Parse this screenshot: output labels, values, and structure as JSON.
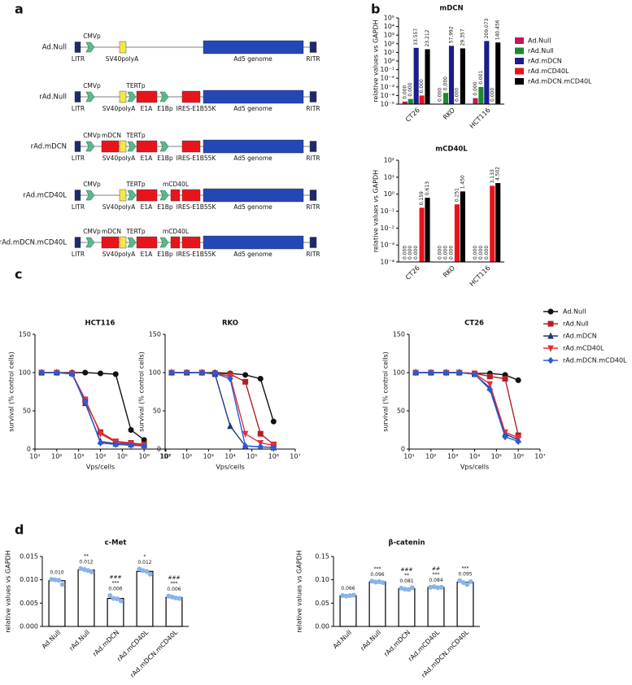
{
  "panel_labels": [
    "a",
    "b",
    "c",
    "d"
  ],
  "diagram": {
    "constructs": [
      {
        "name": "Ad.Null",
        "top": [
          "CMVp"
        ],
        "bottom": [
          "LITR",
          "SV40polyA",
          "Ad5 genome",
          "RITR"
        ]
      },
      {
        "name": "rAd.Null",
        "top": [
          "CMVp",
          "TERTp"
        ],
        "bottom": [
          "LITR",
          "SV40polyA",
          "E1A",
          "E1Bp",
          "IRES-E1B55K",
          "Ad5 genome",
          "RITR"
        ]
      },
      {
        "name": "rAd.mDCN",
        "top": [
          "CMVp",
          "mDCN",
          "TERTp"
        ],
        "bottom": [
          "LITR",
          "SV40polyA",
          "E1A",
          "E1Bp",
          "IRES-E1B55K",
          "Ad5 genome",
          "RITR"
        ]
      },
      {
        "name": "rAd.mCD40L",
        "top": [
          "CMVp",
          "TERTp",
          "mCD40L"
        ],
        "bottom": [
          "LITR",
          "SV40polyA",
          "E1A",
          "E1Bp",
          "IRES-E1B55K",
          "Ad5 genome",
          "RITR"
        ]
      },
      {
        "name": "rAd.mDCN.mCD40L",
        "top": [
          "CMVp",
          "mDCN",
          "TERTp",
          "mCD40L"
        ],
        "bottom": [
          "LITR",
          "SV40polyA",
          "E1A",
          "E1Bp",
          "IRES-E1B55K",
          "Ad5 genome",
          "RITR"
        ]
      }
    ]
  },
  "chart_data": [
    {
      "type": "bar",
      "title": "mDCN",
      "ylabel": "relative values vs GAPDH",
      "yscale": "log",
      "legend": "right",
      "categories": [
        "CT26",
        "RKO",
        "HCT116"
      ],
      "ylim": [
        1e-05,
        100000
      ],
      "yticks": [
        {
          "value": 1e-05,
          "label": "10⁻⁵"
        },
        {
          "value": 0.0001,
          "label": "10⁻⁴"
        },
        {
          "value": 0.001,
          "label": "10⁻³"
        },
        {
          "value": 0.01,
          "label": "10⁻²"
        },
        {
          "value": 0.1,
          "label": "10⁻¹"
        },
        {
          "value": 1,
          "label": "10⁰"
        },
        {
          "value": 10,
          "label": "10¹"
        },
        {
          "value": 100,
          "label": "10²"
        },
        {
          "value": 1000,
          "label": "10³"
        },
        {
          "value": 10000,
          "label": "10⁴"
        },
        {
          "value": 100000,
          "label": "10⁵"
        }
      ],
      "series": [
        {
          "name": "Ad.Null",
          "color": "#c2185b",
          "values": [
            2e-05,
            1e-05,
            5e-05
          ],
          "value_labels": [
            "0.000",
            "0.000",
            "0.000"
          ]
        },
        {
          "name": "rAd.Null",
          "color": "#1b8a2f",
          "values": [
            4e-05,
            0.0002,
            0.001
          ],
          "value_labels": [
            "0.000",
            "0.000",
            "0.001"
          ]
        },
        {
          "name": "rAd.mDCN",
          "color": "#1c1c8c",
          "values": [
            33.557,
            57.992,
            209.073
          ]
        },
        {
          "name": "rAd.mCD40L",
          "color": "#e8141c",
          "values": [
            0.0001,
            1e-05,
            1e-05
          ],
          "value_labels": [
            "0.000",
            "0.000",
            "0.000"
          ]
        },
        {
          "name": "rAd.mDCN.mCD40L",
          "color": "#000000",
          "values": [
            23.212,
            29.357,
            140.456
          ]
        }
      ]
    },
    {
      "type": "bar",
      "title": "mCD40L",
      "ylabel": "relative values vs GAPDH",
      "yscale": "log",
      "categories": [
        "CT26",
        "RKO",
        "HCT116"
      ],
      "ylim": [
        0.0001,
        100
      ],
      "yticks": [
        {
          "value": 0.0001,
          "label": "10⁻⁴"
        },
        {
          "value": 0.001,
          "label": "10⁻³"
        },
        {
          "value": 0.01,
          "label": "10⁻²"
        },
        {
          "value": 0.1,
          "label": "10⁻¹"
        },
        {
          "value": 1,
          "label": "10⁰"
        },
        {
          "value": 10,
          "label": "10¹"
        },
        {
          "value": 100,
          "label": "10²"
        }
      ],
      "series": [
        {
          "color": "#c2185b",
          "values": [
            0.0001,
            0.0001,
            0.0001
          ],
          "value_labels": [
            "0.000",
            "0.000",
            "0.000"
          ]
        },
        {
          "color": "#1b8a2f",
          "values": [
            0.0001,
            0.0001,
            0.0001
          ],
          "value_labels": [
            "0.000",
            "0.000",
            "0.000"
          ]
        },
        {
          "color": "#1c1c8c",
          "values": [
            0.0001,
            0.0001,
            0.0001
          ],
          "value_labels": [
            "0.000",
            "0.000",
            "0.000"
          ]
        },
        {
          "color": "#e8141c",
          "values": [
            0.159,
            0.251,
            3.133
          ]
        },
        {
          "color": "#000000",
          "values": [
            0.613,
            1.45,
            4.502
          ],
          "value_labels": [
            "0.613",
            "1.450",
            "4.502"
          ]
        }
      ]
    },
    {
      "type": "line",
      "title": "HCT116",
      "xlabel": "Vps/cells",
      "ylabel": "survival (% control cells)",
      "xscale": "log",
      "x": [
        20,
        100,
        500,
        2000,
        10000,
        50000,
        250000,
        1000000
      ],
      "xlim": [
        10,
        10000000
      ],
      "xticks": [
        {
          "value": 10,
          "label": "10¹"
        },
        {
          "value": 100,
          "label": "10²"
        },
        {
          "value": 1000,
          "label": "10³"
        },
        {
          "value": 10000,
          "label": "10⁴"
        },
        {
          "value": 100000,
          "label": "10⁵"
        },
        {
          "value": 1000000,
          "label": "10⁶"
        },
        {
          "value": 10000000,
          "label": "10⁷"
        }
      ],
      "ylim": [
        0,
        150
      ],
      "yticks": [
        0,
        50,
        100,
        150
      ],
      "series": [
        {
          "color": "#111111",
          "marker": "circle",
          "values": [
            100,
            100,
            100,
            100,
            99,
            98,
            25,
            12
          ]
        },
        {
          "color": "#b22222",
          "marker": "square",
          "values": [
            100,
            100,
            99,
            63,
            22,
            10,
            8,
            6
          ]
        },
        {
          "color": "#1f3a7a",
          "marker": "triangle",
          "values": [
            100,
            100,
            99,
            60,
            10,
            7,
            6,
            5
          ]
        },
        {
          "color": "#e0303a",
          "marker": "triangle-down",
          "values": [
            100,
            100,
            99,
            65,
            20,
            9,
            7,
            5
          ]
        },
        {
          "color": "#2a5bd7",
          "marker": "diamond",
          "values": [
            100,
            100,
            98,
            62,
            8,
            6,
            5,
            4
          ]
        }
      ]
    },
    {
      "type": "line",
      "title": "RKO",
      "xlabel": "Vps/cells",
      "ylabel": "survival (% control cells)",
      "xscale": "log",
      "x": [
        20,
        100,
        500,
        2000,
        10000,
        50000,
        250000,
        1000000
      ],
      "xlim": [
        10,
        10000000
      ],
      "xticks": [
        {
          "value": 10,
          "label": "10¹"
        },
        {
          "value": 100,
          "label": "10²"
        },
        {
          "value": 1000,
          "label": "10³"
        },
        {
          "value": 10000,
          "label": "10⁴"
        },
        {
          "value": 100000,
          "label": "10⁵"
        },
        {
          "value": 1000000,
          "label": "10⁶"
        },
        {
          "value": 10000000,
          "label": "10⁷"
        }
      ],
      "ylim": [
        0,
        150
      ],
      "yticks": [
        0,
        50,
        100,
        150
      ],
      "series": [
        {
          "color": "#111111",
          "marker": "circle",
          "values": [
            100,
            100,
            100,
            100,
            99,
            97,
            92,
            36
          ]
        },
        {
          "color": "#b22222",
          "marker": "square",
          "values": [
            100,
            100,
            100,
            99,
            98,
            88,
            20,
            6
          ]
        },
        {
          "color": "#1f3a7a",
          "marker": "triangle",
          "values": [
            100,
            100,
            100,
            98,
            30,
            4,
            3,
            2
          ]
        },
        {
          "color": "#e0303a",
          "marker": "triangle-down",
          "values": [
            100,
            100,
            100,
            99,
            95,
            20,
            8,
            5
          ]
        },
        {
          "color": "#2a5bd7",
          "marker": "diamond",
          "values": [
            100,
            100,
            100,
            99,
            92,
            4,
            3,
            2
          ]
        }
      ]
    },
    {
      "type": "line",
      "title": "CT26",
      "xlabel": "Vps/cells",
      "ylabel": "survival (% control cells)",
      "xscale": "log",
      "legend": "outside-right",
      "x": [
        20,
        100,
        500,
        2000,
        10000,
        50000,
        250000,
        1000000
      ],
      "xlim": [
        10,
        10000000
      ],
      "xticks": [
        {
          "value": 10,
          "label": "10¹"
        },
        {
          "value": 100,
          "label": "10²"
        },
        {
          "value": 1000,
          "label": "10³"
        },
        {
          "value": 10000,
          "label": "10⁴"
        },
        {
          "value": 100000,
          "label": "10⁵"
        },
        {
          "value": 1000000,
          "label": "10⁶"
        },
        {
          "value": 10000000,
          "label": "10⁷"
        }
      ],
      "ylim": [
        0,
        150
      ],
      "yticks": [
        0,
        50,
        100,
        150
      ],
      "series": [
        {
          "name": "Ad.Null",
          "color": "#111111",
          "marker": "circle",
          "values": [
            100,
            100,
            100,
            100,
            99,
            99,
            97,
            90
          ]
        },
        {
          "name": "rAd.Null",
          "color": "#b22222",
          "marker": "square",
          "values": [
            100,
            100,
            100,
            100,
            99,
            95,
            92,
            18
          ]
        },
        {
          "name": "rAd.mDCN",
          "color": "#1f3a7a",
          "marker": "triangle",
          "values": [
            100,
            100,
            100,
            100,
            98,
            80,
            20,
            12
          ]
        },
        {
          "name": "rAd.mCD40L",
          "color": "#e0303a",
          "marker": "triangle-down",
          "values": [
            100,
            100,
            100,
            100,
            99,
            85,
            22,
            15
          ]
        },
        {
          "name": "rAd.mDCN.mCD40L",
          "color": "#2a5bd7",
          "marker": "diamond",
          "values": [
            100,
            100,
            100,
            100,
            98,
            78,
            16,
            10
          ]
        }
      ]
    },
    {
      "type": "bar",
      "title": "c-Met",
      "ylabel": "relative values vs GAPDH",
      "color": "#ffffff",
      "point_color": "#8ab4e8",
      "categories": [
        "Ad.Null",
        "rAd.Null",
        "rAd.mDCN",
        "rAd.mCD40L",
        "rAd.mDCN.mCD40L"
      ],
      "values": [
        0.0098,
        0.0121,
        0.006,
        0.0118,
        0.0062
      ],
      "value_labels": [
        "0.010",
        "0.012",
        "0.006",
        "0.012",
        "0.006"
      ],
      "annotations": [
        null,
        [
          "**"
        ],
        [
          "###",
          "***"
        ],
        [
          "*"
        ],
        [
          "###",
          "***"
        ]
      ],
      "points": [
        [
          0.0101,
          0.01,
          0.0099,
          0.009
        ],
        [
          0.0124,
          0.0122,
          0.012,
          0.0117
        ],
        [
          0.0066,
          0.006,
          0.0059,
          0.0055
        ],
        [
          0.0123,
          0.012,
          0.0118,
          0.0112
        ],
        [
          0.0065,
          0.0063,
          0.0061,
          0.006
        ]
      ],
      "ylim": [
        0,
        0.015
      ],
      "yticks": [
        {
          "value": 0,
          "label": "0.000"
        },
        0.005,
        {
          "value": 0.01,
          "label": "0.010"
        },
        0.015
      ]
    },
    {
      "type": "bar",
      "title": "β-catenin",
      "ylabel": "relative values vs GAPDH",
      "color": "#ffffff",
      "point_color": "#8ab4e8",
      "categories": [
        "Ad.Null",
        "rAd.Null",
        "rAd.mDCN",
        "rAd.mCD40L",
        "rAd.mDCN.mCD40L"
      ],
      "values": [
        0.066,
        0.0956,
        0.081,
        0.084,
        0.0949
      ],
      "value_labels": [
        "0.066",
        "0.096",
        "0.081",
        "0.084",
        "0.095"
      ],
      "annotations": [
        null,
        [
          "***"
        ],
        [
          "###",
          "**"
        ],
        [
          "##",
          "***"
        ],
        [
          "***"
        ]
      ],
      "points": [
        [
          0.066,
          0.065,
          0.066,
          0.067
        ],
        [
          0.097,
          0.095,
          0.096,
          0.094
        ],
        [
          0.082,
          0.08,
          0.079,
          0.083
        ],
        [
          0.084,
          0.085,
          0.083,
          0.084
        ],
        [
          0.098,
          0.094,
          0.09,
          0.096
        ]
      ],
      "ylim": [
        0,
        0.15
      ],
      "yticks": [
        {
          "value": 0,
          "label": "0.00"
        },
        0.05,
        {
          "value": 0.1,
          "label": "0.10"
        },
        0.15
      ]
    }
  ]
}
